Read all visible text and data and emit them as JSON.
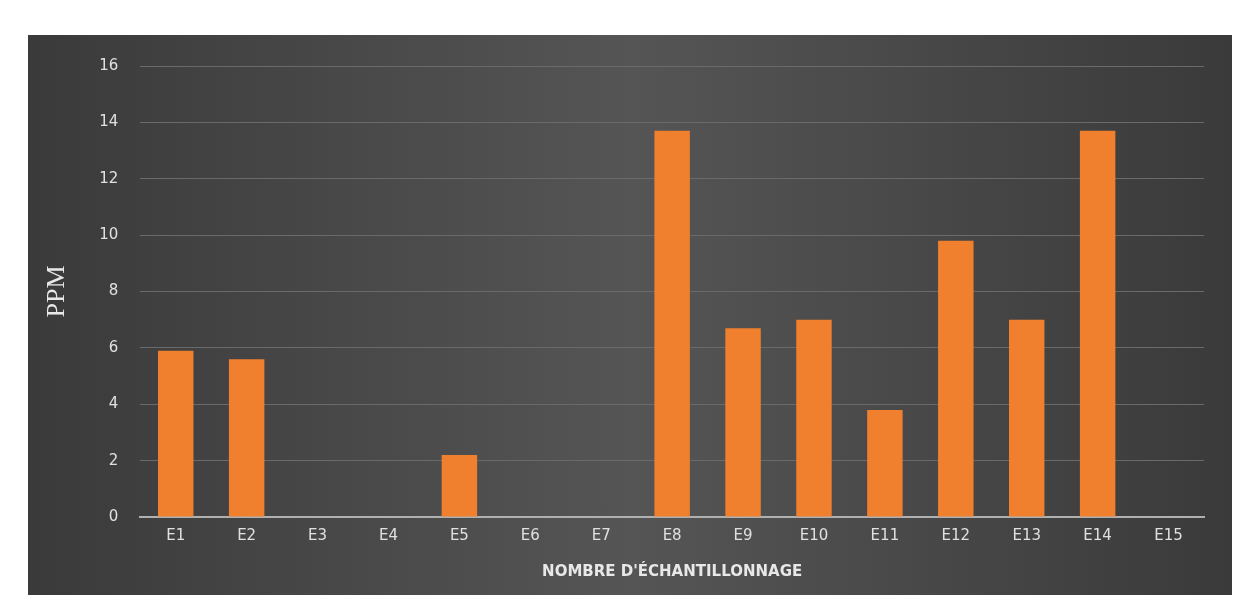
{
  "chart_data": {
    "type": "bar",
    "xlabel": "NOMBRE D'ÉCHANTILLONNAGE",
    "ylabel": "PPM",
    "categories": [
      "E1",
      "E2",
      "E3",
      "E4",
      "E5",
      "E6",
      "E7",
      "E8",
      "E9",
      "E10",
      "E11",
      "E12",
      "E13",
      "E14",
      "E15"
    ],
    "values": [
      5.9,
      5.6,
      0,
      0,
      2.2,
      0,
      0,
      13.7,
      6.7,
      7.0,
      3.8,
      9.8,
      7.0,
      13.7,
      0
    ],
    "color": "#f0802e",
    "ylim": [
      0,
      16
    ],
    "yticks": [
      0,
      2,
      4,
      6,
      8,
      10,
      12,
      14,
      16
    ],
    "grid": "y"
  }
}
